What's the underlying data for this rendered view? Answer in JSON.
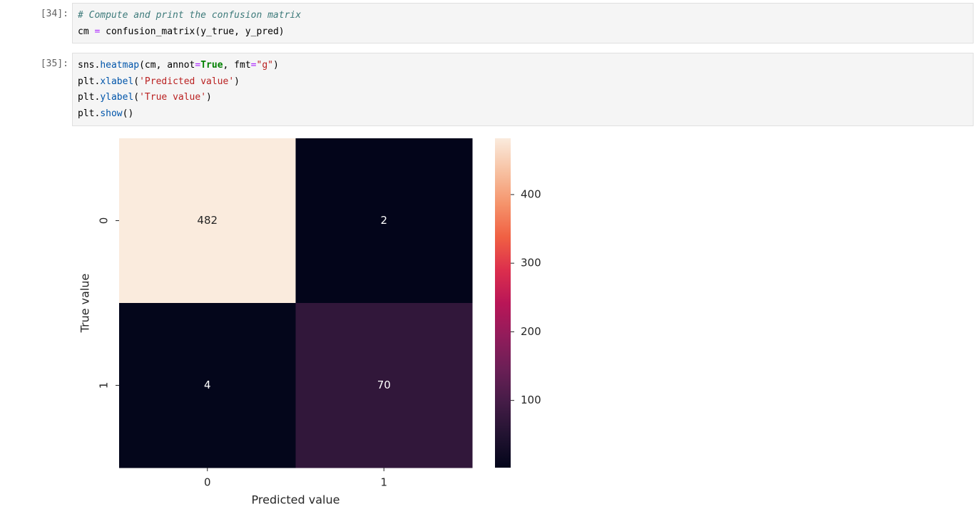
{
  "cells": [
    {
      "prompt": "[34]:",
      "lines": [
        [
          {
            "text": "# Compute and print the confusion matrix",
            "color": "#3d7a7a",
            "font_style": "italic"
          }
        ],
        [
          {
            "text": "cm ",
            "color": "#000000"
          },
          {
            "text": "=",
            "color": "#aa22ff"
          },
          {
            "text": " confusion_matrix(y_true, y_pred)",
            "color": "#000000"
          }
        ]
      ]
    },
    {
      "prompt": "[35]:",
      "lines": [
        [
          {
            "text": "sns.",
            "color": "#000000"
          },
          {
            "text": "heatmap",
            "color": "#0055aa"
          },
          {
            "text": "(cm, annot",
            "color": "#000000"
          },
          {
            "text": "=",
            "color": "#aa22ff"
          },
          {
            "text": "True",
            "color": "#008000",
            "font_weight": "bold"
          },
          {
            "text": ", fmt",
            "color": "#000000"
          },
          {
            "text": "=",
            "color": "#aa22ff"
          },
          {
            "text": "\"g\"",
            "color": "#ba2121"
          },
          {
            "text": ")",
            "color": "#000000"
          }
        ],
        [
          {
            "text": "plt.",
            "color": "#000000"
          },
          {
            "text": "xlabel",
            "color": "#0055aa"
          },
          {
            "text": "(",
            "color": "#000000"
          },
          {
            "text": "'Predicted value'",
            "color": "#ba2121"
          },
          {
            "text": ")",
            "color": "#000000"
          }
        ],
        [
          {
            "text": "plt.",
            "color": "#000000"
          },
          {
            "text": "ylabel",
            "color": "#0055aa"
          },
          {
            "text": "(",
            "color": "#000000"
          },
          {
            "text": "'True value'",
            "color": "#ba2121"
          },
          {
            "text": ")",
            "color": "#000000"
          }
        ],
        [
          {
            "text": "plt.",
            "color": "#000000"
          },
          {
            "text": "show",
            "color": "#0055aa"
          },
          {
            "text": "()",
            "color": "#000000"
          }
        ]
      ]
    }
  ],
  "chart_data": {
    "type": "heatmap",
    "x_categories": [
      "0",
      "1"
    ],
    "y_categories": [
      "0",
      "1"
    ],
    "values": [
      [
        482,
        2
      ],
      [
        4,
        70
      ]
    ],
    "xlabel": "Predicted value",
    "ylabel": "True value",
    "colormap": "rocket",
    "clim": [
      2,
      482
    ],
    "colorbar_ticks": [
      100,
      200,
      300,
      400
    ]
  }
}
